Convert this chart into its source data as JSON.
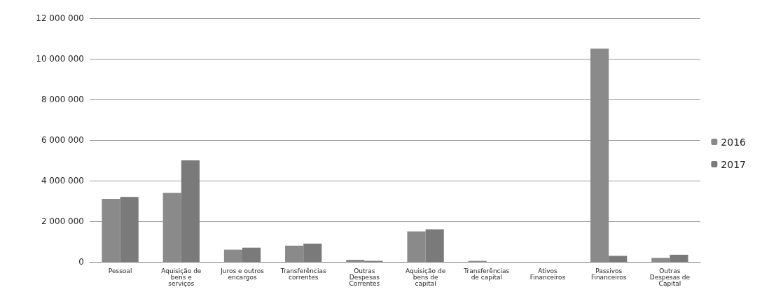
{
  "chart_data": {
    "type": "bar",
    "categories": [
      "Pessoal",
      "Aquisição de bens e serviços",
      "Juros e outros encargos",
      "Transferências correntes",
      "Outras Despesas Correntes",
      "Aquisição de bens de capital",
      "Transferências de capital",
      "Ativos Financeiros",
      "Passivos Financeiros",
      "Outras Despesas de Capital"
    ],
    "series": [
      {
        "name": "2016",
        "color": "#8a8a8a",
        "values": [
          3100000,
          3400000,
          600000,
          800000,
          100000,
          1500000,
          50000,
          null,
          10500000,
          200000
        ]
      },
      {
        "name": "2017",
        "color": "#7a7a7a",
        "values": [
          3200000,
          5000000,
          700000,
          900000,
          50000,
          1600000,
          null,
          null,
          300000,
          350000
        ]
      }
    ],
    "ylim": [
      0,
      12000000
    ],
    "yticks": [
      0,
      2000000,
      4000000,
      6000000,
      8000000,
      10000000,
      12000000
    ],
    "grid": "y",
    "legend": "right"
  }
}
